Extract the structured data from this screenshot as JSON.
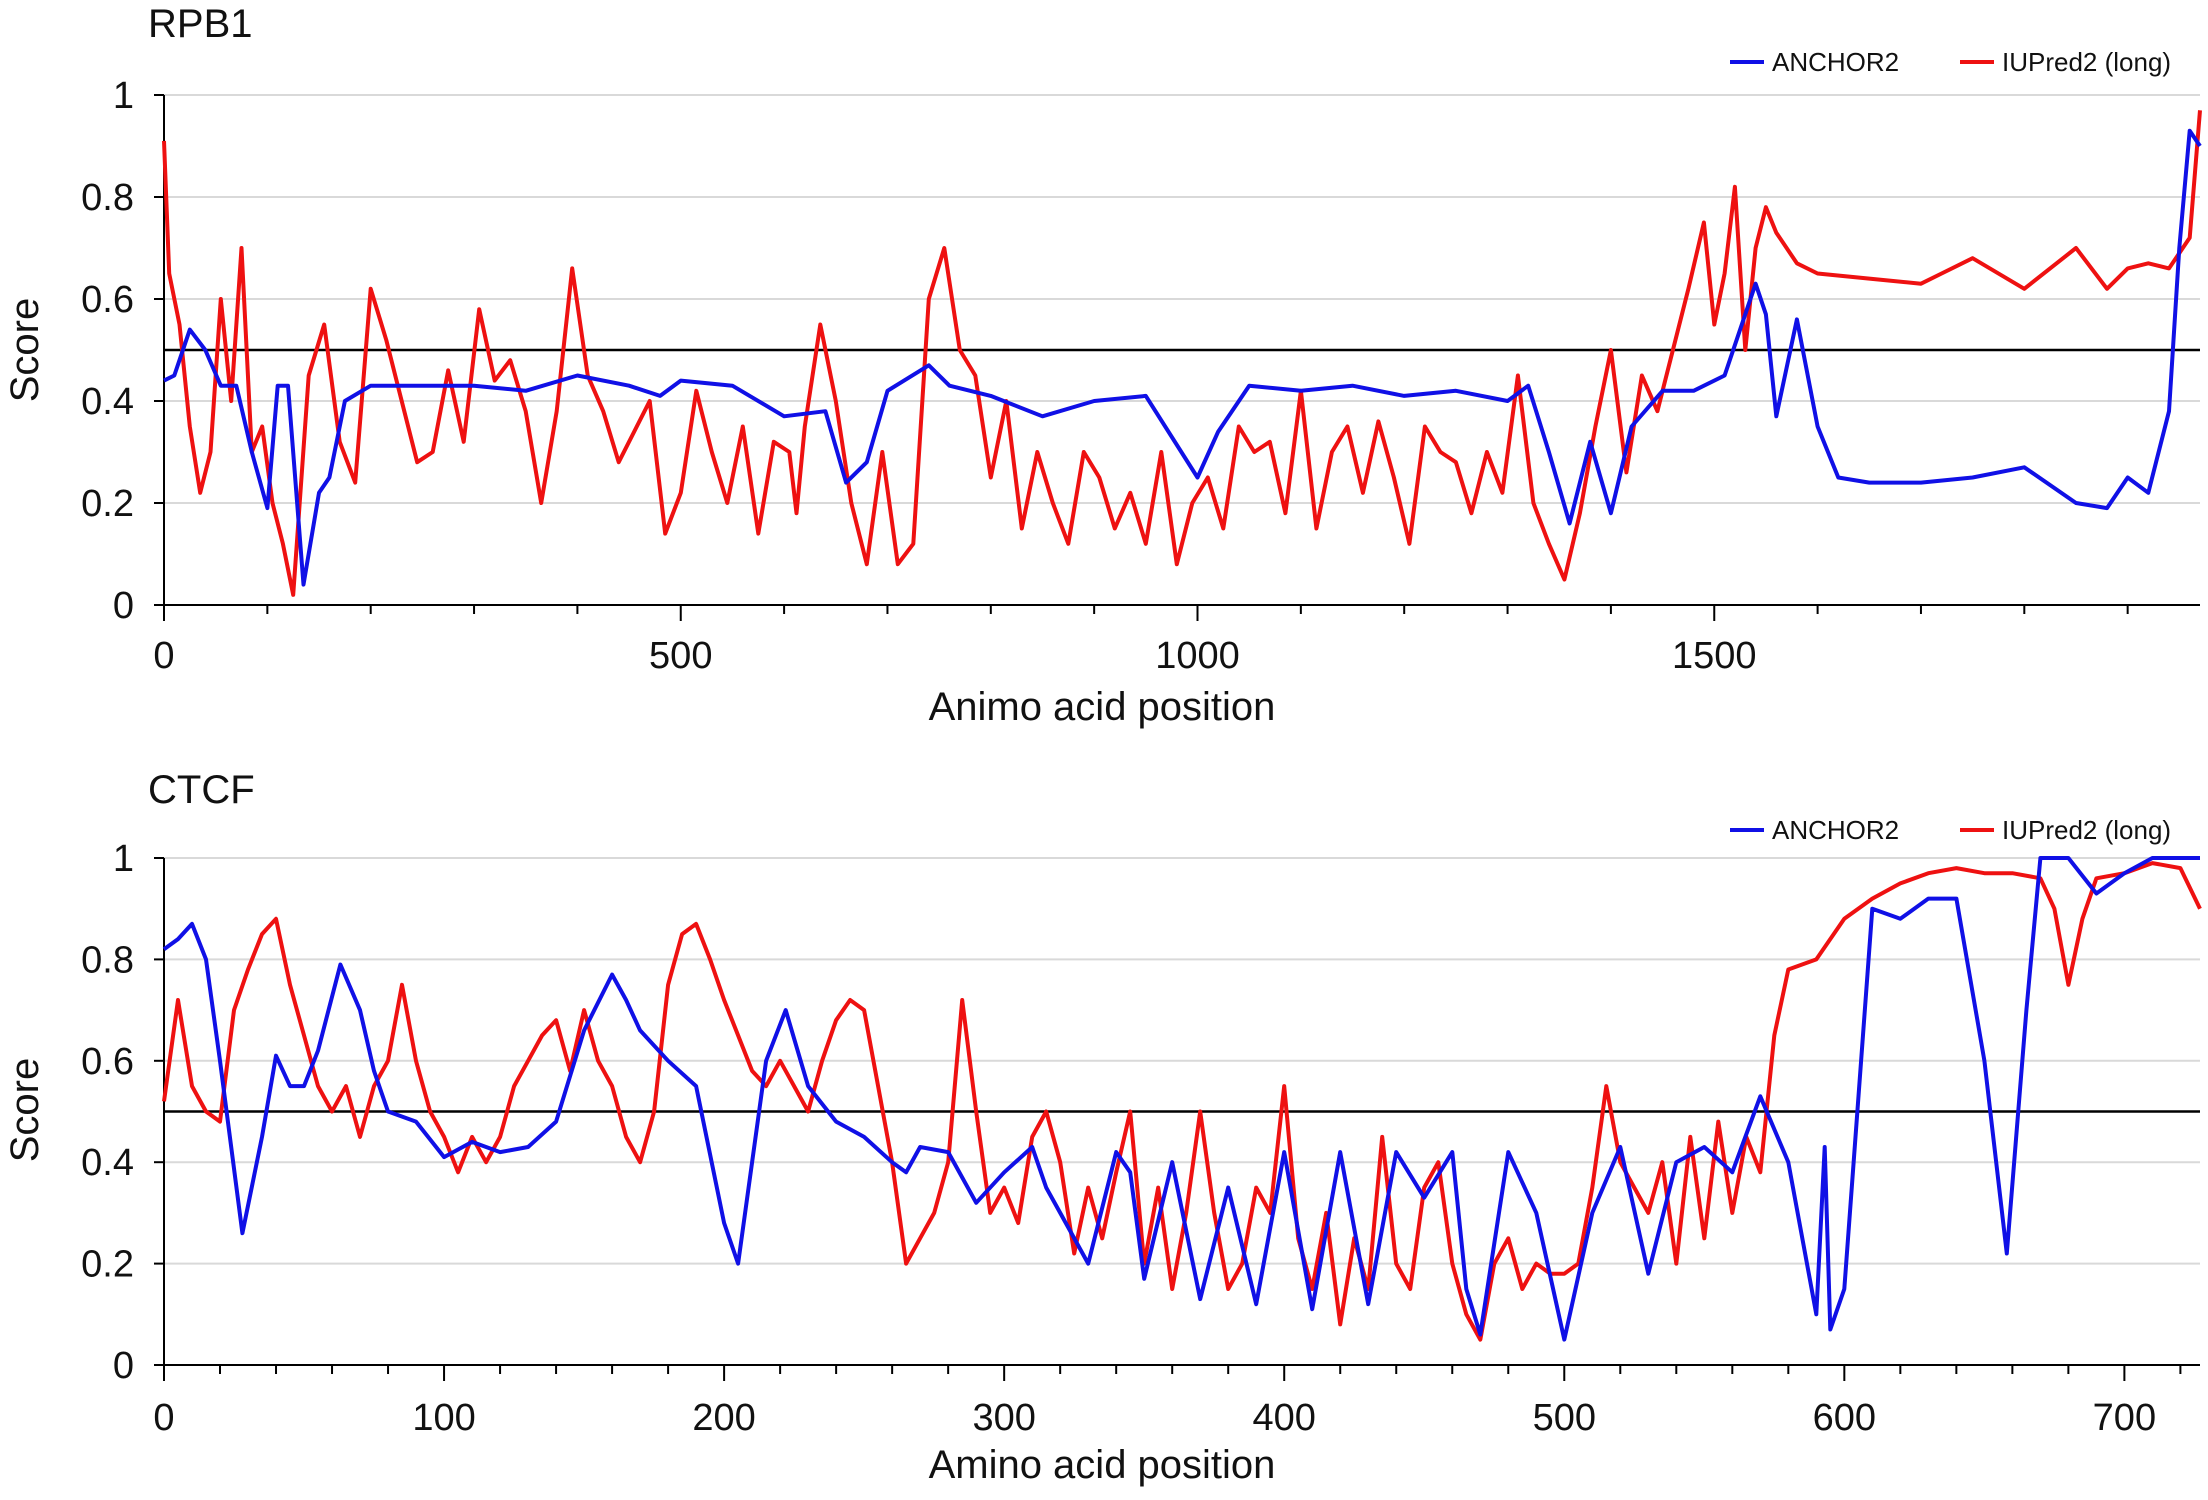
{
  "chart_data": [
    {
      "type": "line",
      "title": "RPB1",
      "xlabel": "Animo acid position",
      "ylabel": "Score",
      "xlim": [
        0,
        1970
      ],
      "ylim": [
        0,
        1
      ],
      "threshold": 0.5,
      "xticks": [
        0,
        500,
        1000,
        1500
      ],
      "yticks": [
        0,
        0.2,
        0.4,
        0.6,
        0.8,
        1
      ],
      "ytick_labels": [
        "0",
        "0.2",
        "0.4",
        "0.6",
        "0.8",
        "1"
      ],
      "legend_position": "top-right",
      "series": [
        {
          "name": "ANCHOR2",
          "color": "#1010e6",
          "x": [
            0,
            10,
            25,
            40,
            55,
            70,
            85,
            100,
            110,
            120,
            135,
            150,
            160,
            175,
            200,
            250,
            300,
            350,
            400,
            450,
            480,
            500,
            550,
            600,
            640,
            660,
            680,
            700,
            740,
            760,
            800,
            850,
            900,
            950,
            1000,
            1020,
            1050,
            1100,
            1150,
            1200,
            1250,
            1300,
            1320,
            1340,
            1360,
            1380,
            1400,
            1420,
            1450,
            1480,
            1510,
            1540,
            1550,
            1560,
            1580,
            1600,
            1620,
            1650,
            1700,
            1750,
            1800,
            1850,
            1880,
            1900,
            1920,
            1940,
            1950,
            1960,
            1970
          ],
          "values": [
            0.44,
            0.45,
            0.54,
            0.5,
            0.43,
            0.43,
            0.3,
            0.19,
            0.43,
            0.43,
            0.04,
            0.22,
            0.25,
            0.4,
            0.43,
            0.43,
            0.43,
            0.42,
            0.45,
            0.43,
            0.41,
            0.44,
            0.43,
            0.37,
            0.38,
            0.24,
            0.28,
            0.42,
            0.47,
            0.43,
            0.41,
            0.37,
            0.4,
            0.41,
            0.25,
            0.34,
            0.43,
            0.42,
            0.43,
            0.41,
            0.42,
            0.4,
            0.43,
            0.3,
            0.16,
            0.32,
            0.18,
            0.35,
            0.42,
            0.42,
            0.45,
            0.63,
            0.57,
            0.37,
            0.56,
            0.35,
            0.25,
            0.24,
            0.24,
            0.25,
            0.27,
            0.2,
            0.19,
            0.25,
            0.22,
            0.38,
            0.7,
            0.93,
            0.9
          ]
        },
        {
          "name": "IUPred2 (long)",
          "color": "#ee1111",
          "x": [
            0,
            5,
            15,
            25,
            35,
            45,
            55,
            65,
            75,
            85,
            95,
            105,
            115,
            125,
            140,
            155,
            170,
            185,
            200,
            215,
            230,
            245,
            260,
            275,
            290,
            305,
            320,
            335,
            350,
            365,
            380,
            395,
            410,
            425,
            440,
            455,
            470,
            485,
            500,
            515,
            530,
            545,
            560,
            575,
            590,
            605,
            612,
            620,
            635,
            650,
            665,
            680,
            695,
            710,
            725,
            740,
            755,
            770,
            785,
            800,
            815,
            830,
            845,
            860,
            875,
            890,
            905,
            920,
            935,
            950,
            965,
            980,
            995,
            1010,
            1025,
            1040,
            1055,
            1070,
            1085,
            1100,
            1115,
            1130,
            1145,
            1160,
            1175,
            1190,
            1205,
            1220,
            1235,
            1250,
            1265,
            1280,
            1295,
            1310,
            1325,
            1340,
            1355,
            1370,
            1385,
            1400,
            1415,
            1430,
            1445,
            1460,
            1475,
            1490,
            1500,
            1510,
            1520,
            1530,
            1540,
            1550,
            1560,
            1580,
            1600,
            1650,
            1700,
            1720,
            1750,
            1800,
            1850,
            1880,
            1900,
            1920,
            1940,
            1960,
            1970
          ],
          "values": [
            0.91,
            0.65,
            0.55,
            0.35,
            0.22,
            0.3,
            0.6,
            0.4,
            0.7,
            0.3,
            0.35,
            0.2,
            0.12,
            0.02,
            0.45,
            0.55,
            0.32,
            0.24,
            0.62,
            0.52,
            0.4,
            0.28,
            0.3,
            0.46,
            0.32,
            0.58,
            0.44,
            0.48,
            0.38,
            0.2,
            0.38,
            0.66,
            0.45,
            0.38,
            0.28,
            0.34,
            0.4,
            0.14,
            0.22,
            0.42,
            0.3,
            0.2,
            0.35,
            0.14,
            0.32,
            0.3,
            0.18,
            0.35,
            0.55,
            0.4,
            0.2,
            0.08,
            0.3,
            0.08,
            0.12,
            0.6,
            0.7,
            0.5,
            0.45,
            0.25,
            0.4,
            0.15,
            0.3,
            0.2,
            0.12,
            0.3,
            0.25,
            0.15,
            0.22,
            0.12,
            0.3,
            0.08,
            0.2,
            0.25,
            0.15,
            0.35,
            0.3,
            0.32,
            0.18,
            0.42,
            0.15,
            0.3,
            0.35,
            0.22,
            0.36,
            0.25,
            0.12,
            0.35,
            0.3,
            0.28,
            0.18,
            0.3,
            0.22,
            0.45,
            0.2,
            0.12,
            0.05,
            0.18,
            0.35,
            0.5,
            0.26,
            0.45,
            0.38,
            0.5,
            0.62,
            0.75,
            0.55,
            0.65,
            0.82,
            0.5,
            0.7,
            0.78,
            0.73,
            0.67,
            0.65,
            0.64,
            0.63,
            0.65,
            0.68,
            0.62,
            0.7,
            0.62,
            0.66,
            0.67,
            0.66,
            0.72,
            0.97
          ]
        }
      ]
    },
    {
      "type": "line",
      "title": "CTCF",
      "xlabel": "Amino acid position",
      "ylabel": "Score",
      "xlim": [
        0,
        727
      ],
      "ylim": [
        0,
        1
      ],
      "threshold": 0.5,
      "xticks": [
        0,
        100,
        200,
        300,
        400,
        500,
        600,
        700
      ],
      "yticks": [
        0,
        0.2,
        0.4,
        0.6,
        0.8,
        1
      ],
      "ytick_labels": [
        "0",
        "0.2",
        "0.4",
        "0.6",
        "0.8",
        "1"
      ],
      "legend_position": "top-right",
      "series": [
        {
          "name": "ANCHOR2",
          "color": "#1010e6",
          "x": [
            0,
            5,
            10,
            15,
            20,
            28,
            35,
            40,
            45,
            50,
            55,
            63,
            70,
            75,
            80,
            90,
            100,
            110,
            120,
            130,
            140,
            150,
            160,
            165,
            170,
            180,
            190,
            200,
            205,
            210,
            215,
            222,
            230,
            240,
            250,
            260,
            265,
            270,
            280,
            290,
            300,
            310,
            315,
            320,
            330,
            340,
            345,
            350,
            360,
            370,
            380,
            390,
            400,
            410,
            420,
            430,
            440,
            450,
            460,
            465,
            470,
            480,
            490,
            500,
            510,
            520,
            530,
            540,
            550,
            560,
            570,
            580,
            590,
            593,
            595,
            600,
            610,
            620,
            630,
            640,
            650,
            658,
            665,
            670,
            680,
            690,
            700,
            710,
            727
          ],
          "values": [
            0.82,
            0.84,
            0.87,
            0.8,
            0.6,
            0.26,
            0.45,
            0.61,
            0.55,
            0.55,
            0.62,
            0.79,
            0.7,
            0.58,
            0.5,
            0.48,
            0.41,
            0.44,
            0.42,
            0.43,
            0.48,
            0.66,
            0.77,
            0.72,
            0.66,
            0.6,
            0.55,
            0.28,
            0.2,
            0.4,
            0.6,
            0.7,
            0.55,
            0.48,
            0.45,
            0.4,
            0.38,
            0.43,
            0.42,
            0.32,
            0.38,
            0.43,
            0.35,
            0.3,
            0.2,
            0.42,
            0.38,
            0.17,
            0.4,
            0.13,
            0.35,
            0.12,
            0.42,
            0.11,
            0.42,
            0.12,
            0.42,
            0.33,
            0.42,
            0.15,
            0.06,
            0.42,
            0.3,
            0.05,
            0.3,
            0.43,
            0.18,
            0.4,
            0.43,
            0.38,
            0.53,
            0.4,
            0.1,
            0.43,
            0.07,
            0.15,
            0.9,
            0.88,
            0.92,
            0.92,
            0.6,
            0.22,
            0.7,
            1.0,
            1.0,
            0.93,
            0.97,
            1.0,
            1.0
          ]
        },
        {
          "name": "IUPred2 (long)",
          "color": "#ee1111",
          "x": [
            0,
            5,
            10,
            15,
            20,
            25,
            30,
            35,
            40,
            45,
            50,
            55,
            60,
            65,
            70,
            75,
            80,
            85,
            90,
            95,
            100,
            105,
            110,
            115,
            120,
            125,
            130,
            135,
            140,
            145,
            150,
            155,
            160,
            165,
            170,
            175,
            180,
            185,
            190,
            195,
            200,
            205,
            210,
            215,
            220,
            225,
            230,
            235,
            240,
            245,
            250,
            255,
            260,
            265,
            270,
            275,
            280,
            285,
            290,
            295,
            300,
            305,
            310,
            315,
            320,
            325,
            330,
            335,
            340,
            345,
            350,
            355,
            360,
            365,
            370,
            375,
            380,
            385,
            390,
            395,
            400,
            405,
            410,
            415,
            420,
            425,
            430,
            435,
            440,
            445,
            450,
            455,
            460,
            465,
            470,
            475,
            480,
            485,
            490,
            495,
            500,
            505,
            510,
            515,
            520,
            525,
            530,
            535,
            540,
            545,
            550,
            555,
            560,
            565,
            570,
            575,
            580,
            590,
            600,
            610,
            620,
            630,
            640,
            650,
            660,
            670,
            675,
            680,
            685,
            690,
            700,
            710,
            720,
            727
          ],
          "values": [
            0.52,
            0.72,
            0.55,
            0.5,
            0.48,
            0.7,
            0.78,
            0.85,
            0.88,
            0.75,
            0.65,
            0.55,
            0.5,
            0.55,
            0.45,
            0.55,
            0.6,
            0.75,
            0.6,
            0.5,
            0.45,
            0.38,
            0.45,
            0.4,
            0.45,
            0.55,
            0.6,
            0.65,
            0.68,
            0.58,
            0.7,
            0.6,
            0.55,
            0.45,
            0.4,
            0.5,
            0.75,
            0.85,
            0.87,
            0.8,
            0.72,
            0.65,
            0.58,
            0.55,
            0.6,
            0.55,
            0.5,
            0.6,
            0.68,
            0.72,
            0.7,
            0.55,
            0.4,
            0.2,
            0.25,
            0.3,
            0.4,
            0.72,
            0.5,
            0.3,
            0.35,
            0.28,
            0.45,
            0.5,
            0.4,
            0.22,
            0.35,
            0.25,
            0.38,
            0.5,
            0.2,
            0.35,
            0.15,
            0.3,
            0.5,
            0.3,
            0.15,
            0.2,
            0.35,
            0.3,
            0.55,
            0.25,
            0.15,
            0.3,
            0.08,
            0.25,
            0.15,
            0.45,
            0.2,
            0.15,
            0.35,
            0.4,
            0.2,
            0.1,
            0.05,
            0.2,
            0.25,
            0.15,
            0.2,
            0.18,
            0.18,
            0.2,
            0.35,
            0.55,
            0.4,
            0.35,
            0.3,
            0.4,
            0.2,
            0.45,
            0.25,
            0.48,
            0.3,
            0.45,
            0.38,
            0.65,
            0.78,
            0.8,
            0.88,
            0.92,
            0.95,
            0.97,
            0.98,
            0.97,
            0.97,
            0.96,
            0.9,
            0.75,
            0.88,
            0.96,
            0.97,
            0.99,
            0.98,
            0.9
          ]
        }
      ]
    }
  ]
}
